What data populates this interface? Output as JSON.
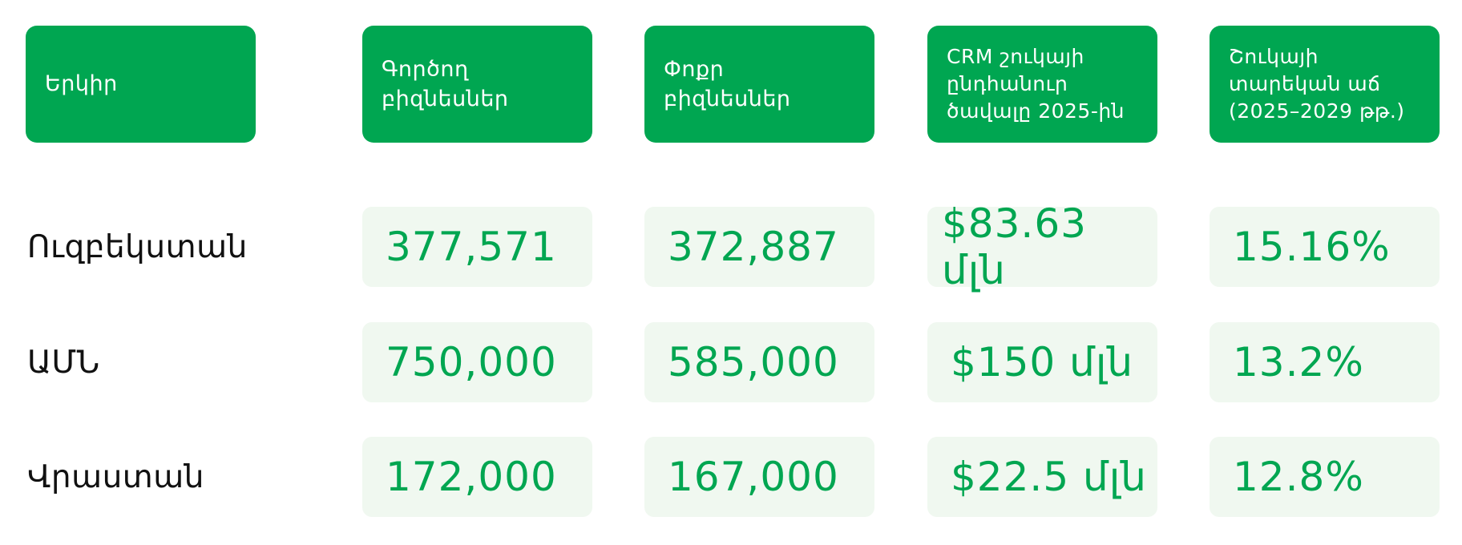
{
  "colors": {
    "header_bg": "#00a651",
    "cell_bg": "#f0f8f0",
    "value_text": "#00a651",
    "country_text": "#111111"
  },
  "chart_data": {
    "type": "table",
    "columns": [
      "Երկիր",
      "Գործող բիզնեսներ",
      "Փոքր բիզնեսներ",
      "CRM շուկայի ընդհանուր ծավալը 2025-ին",
      "Շուկայի տարեկան աճ (2025–2029 թթ.)"
    ],
    "column_lines": [
      "Երկիր",
      "Գործող\nբիզնեսներ",
      "Փոքր\nբիզնեսներ",
      "CRM շուկայի\nընդհանուր\nծավալը 2025-ին",
      "Շուկայի\nտարեկան աճ\n(2025–2029 թթ.)"
    ],
    "rows": [
      {
        "country": "Ուզբեկստան",
        "active_businesses": "377,571",
        "small_businesses": "372,887",
        "crm_market_2025": "$83.63 մլն",
        "annual_growth": "15.16%"
      },
      {
        "country": "ԱՄՆ",
        "active_businesses": "750,000",
        "small_businesses": "585,000",
        "crm_market_2025": "$150 մլն",
        "annual_growth": "13.2%"
      },
      {
        "country": "Վրաստան",
        "active_businesses": "172,000",
        "small_businesses": "167,000",
        "crm_market_2025": "$22.5 մլն",
        "annual_growth": "12.8%"
      }
    ]
  }
}
